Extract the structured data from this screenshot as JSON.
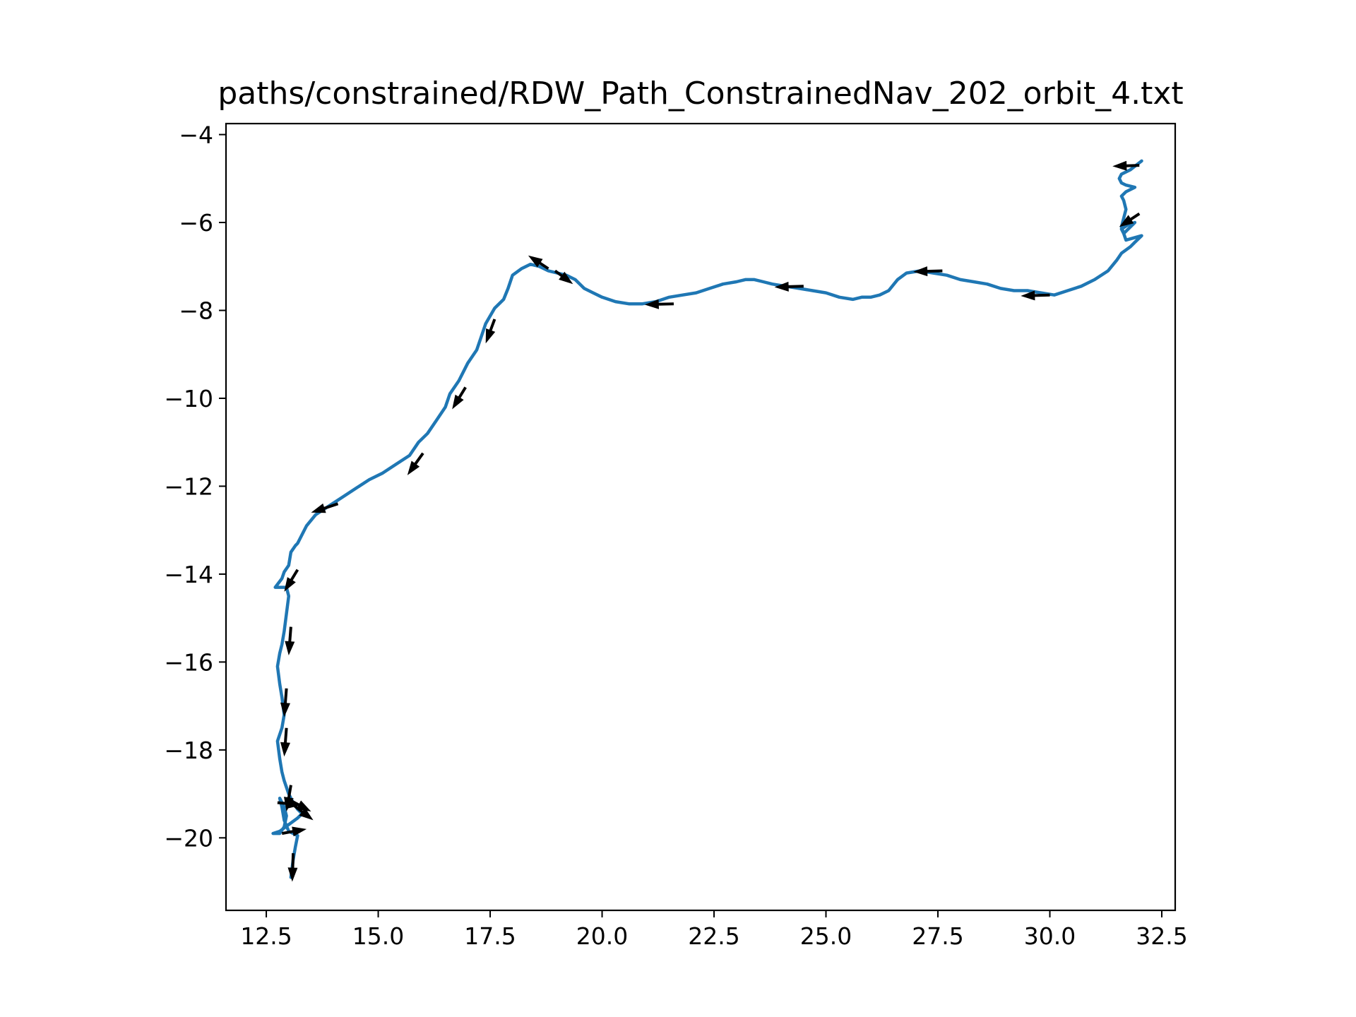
{
  "chart_data": {
    "type": "line",
    "title": "paths/constrained/RDW_Path_ConstrainedNav_202_orbit_4.txt",
    "xlabel": "",
    "ylabel": "",
    "xlim": [
      11.6,
      32.8
    ],
    "ylim": [
      -21.65,
      -3.75
    ],
    "xticks": [
      12.5,
      15.0,
      17.5,
      20.0,
      22.5,
      25.0,
      27.5,
      30.0,
      32.5
    ],
    "xtick_labels": [
      "12.5",
      "15.0",
      "17.5",
      "20.0",
      "22.5",
      "25.0",
      "27.5",
      "30.0",
      "32.5"
    ],
    "yticks": [
      -4,
      -6,
      -8,
      -10,
      -12,
      -14,
      -16,
      -18,
      -20
    ],
    "ytick_labels": [
      "−4",
      "−6",
      "−8",
      "−10",
      "−12",
      "−14",
      "−16",
      "−18",
      "−20"
    ],
    "grid": false,
    "line_color": "#1f77b4",
    "arrow_color": "#000000",
    "series": [
      {
        "x": [
          32.05,
          31.8,
          31.6,
          31.55,
          31.6,
          31.7,
          31.9,
          31.7,
          31.6,
          31.65,
          31.7,
          31.65,
          31.6,
          31.65,
          31.9,
          31.75,
          31.6,
          31.65,
          31.7,
          32.05,
          31.9,
          31.8,
          31.6,
          31.5,
          31.3,
          31.0,
          30.7,
          30.4,
          30.1,
          29.8,
          29.5,
          29.2,
          28.9,
          28.6,
          28.3,
          28.0,
          27.7,
          27.4,
          27.1,
          26.8,
          26.6,
          26.4,
          26.2,
          26.0,
          25.8,
          25.6,
          25.3,
          25.0,
          24.7,
          24.4,
          24.1,
          23.8,
          23.6,
          23.4,
          23.2,
          23.0,
          22.7,
          22.4,
          22.1,
          21.8,
          21.5,
          21.2,
          20.9,
          20.6,
          20.3,
          20.0,
          19.8,
          19.6,
          19.4,
          19.2,
          19.0,
          18.8,
          18.6,
          18.4,
          18.2,
          18.0,
          17.9,
          17.8,
          17.6,
          17.4,
          17.3,
          17.2,
          17.0,
          16.8,
          16.6,
          16.5,
          16.3,
          16.1,
          15.9,
          15.7,
          15.4,
          15.1,
          14.8,
          14.5,
          14.2,
          13.9,
          13.6,
          13.4,
          13.2,
          13.15,
          13.05,
          13.0,
          12.9,
          12.85,
          12.7,
          12.95,
          13.0,
          12.95,
          12.9,
          12.85,
          12.8,
          12.75,
          12.8,
          12.85,
          12.9,
          12.85,
          12.75,
          12.8,
          12.85,
          12.9,
          13.0,
          13.1,
          13.2,
          13.3,
          13.2,
          13.0,
          12.8,
          12.65,
          12.8,
          12.9,
          12.95,
          12.9,
          12.8,
          12.85,
          12.9,
          13.0,
          13.2,
          13.15,
          13.1,
          13.05
        ],
        "y": [
          -4.6,
          -4.8,
          -4.9,
          -5.0,
          -5.1,
          -5.15,
          -5.2,
          -5.3,
          -5.4,
          -5.5,
          -5.7,
          -5.9,
          -6.1,
          -6.25,
          -6.0,
          -6.05,
          -6.15,
          -6.25,
          -6.4,
          -6.3,
          -6.45,
          -6.55,
          -6.7,
          -6.85,
          -7.1,
          -7.3,
          -7.45,
          -7.55,
          -7.65,
          -7.6,
          -7.55,
          -7.55,
          -7.5,
          -7.4,
          -7.35,
          -7.3,
          -7.2,
          -7.15,
          -7.1,
          -7.15,
          -7.3,
          -7.55,
          -7.65,
          -7.7,
          -7.7,
          -7.75,
          -7.7,
          -7.6,
          -7.55,
          -7.5,
          -7.45,
          -7.4,
          -7.35,
          -7.3,
          -7.3,
          -7.35,
          -7.4,
          -7.5,
          -7.6,
          -7.65,
          -7.7,
          -7.8,
          -7.85,
          -7.85,
          -7.8,
          -7.7,
          -7.6,
          -7.5,
          -7.3,
          -7.2,
          -7.15,
          -7.1,
          -7.0,
          -6.95,
          -7.05,
          -7.2,
          -7.5,
          -7.75,
          -7.95,
          -8.3,
          -8.6,
          -8.9,
          -9.2,
          -9.6,
          -9.9,
          -10.2,
          -10.5,
          -10.8,
          -11.0,
          -11.3,
          -11.5,
          -11.7,
          -11.85,
          -12.05,
          -12.25,
          -12.45,
          -12.65,
          -12.9,
          -13.3,
          -13.35,
          -13.5,
          -13.8,
          -13.95,
          -14.1,
          -14.3,
          -14.3,
          -14.5,
          -14.9,
          -15.3,
          -15.6,
          -15.8,
          -16.1,
          -16.5,
          -16.8,
          -17.2,
          -17.5,
          -17.8,
          -18.2,
          -18.5,
          -18.7,
          -19.0,
          -19.2,
          -19.35,
          -19.45,
          -19.55,
          -19.7,
          -19.85,
          -19.9,
          -19.9,
          -19.75,
          -19.5,
          -19.3,
          -19.1,
          -19.3,
          -19.6,
          -19.85,
          -19.95,
          -20.2,
          -20.5,
          -20.9
        ]
      }
    ],
    "arrows": [
      {
        "x": 32.0,
        "y": -4.7,
        "dx": -0.6,
        "dy": -0.02
      },
      {
        "x": 32.0,
        "y": -5.8,
        "dx": -0.45,
        "dy": -0.3
      },
      {
        "x": 30.0,
        "y": -7.65,
        "dx": -0.65,
        "dy": -0.02
      },
      {
        "x": 27.6,
        "y": -7.1,
        "dx": -0.65,
        "dy": -0.02
      },
      {
        "x": 24.5,
        "y": -7.45,
        "dx": -0.65,
        "dy": -0.02
      },
      {
        "x": 21.6,
        "y": -7.85,
        "dx": -0.65,
        "dy": -0.02
      },
      {
        "x": 18.8,
        "y": -7.05,
        "dx": -0.45,
        "dy": 0.3
      },
      {
        "x": 18.95,
        "y": -7.1,
        "dx": 0.4,
        "dy": -0.3
      },
      {
        "x": 17.6,
        "y": -8.2,
        "dx": -0.2,
        "dy": -0.55
      },
      {
        "x": 16.95,
        "y": -9.75,
        "dx": -0.3,
        "dy": -0.5
      },
      {
        "x": 16.0,
        "y": -11.25,
        "dx": -0.35,
        "dy": -0.5
      },
      {
        "x": 14.1,
        "y": -12.4,
        "dx": -0.6,
        "dy": -0.2
      },
      {
        "x": 13.2,
        "y": -13.9,
        "dx": -0.3,
        "dy": -0.5
      },
      {
        "x": 13.05,
        "y": -15.2,
        "dx": -0.05,
        "dy": -0.65
      },
      {
        "x": 12.95,
        "y": -16.6,
        "dx": -0.05,
        "dy": -0.65
      },
      {
        "x": 12.95,
        "y": -17.5,
        "dx": -0.05,
        "dy": -0.65
      },
      {
        "x": 13.05,
        "y": -18.8,
        "dx": -0.1,
        "dy": -0.6
      },
      {
        "x": 12.75,
        "y": -19.2,
        "dx": 0.55,
        "dy": -0.05
      },
      {
        "x": 12.95,
        "y": -19.1,
        "dx": 0.55,
        "dy": -0.3
      },
      {
        "x": 13.1,
        "y": -19.25,
        "dx": 0.45,
        "dy": -0.35
      },
      {
        "x": 12.85,
        "y": -19.9,
        "dx": 0.55,
        "dy": 0.1
      },
      {
        "x": 13.1,
        "y": -20.35,
        "dx": -0.02,
        "dy": -0.65
      }
    ]
  }
}
